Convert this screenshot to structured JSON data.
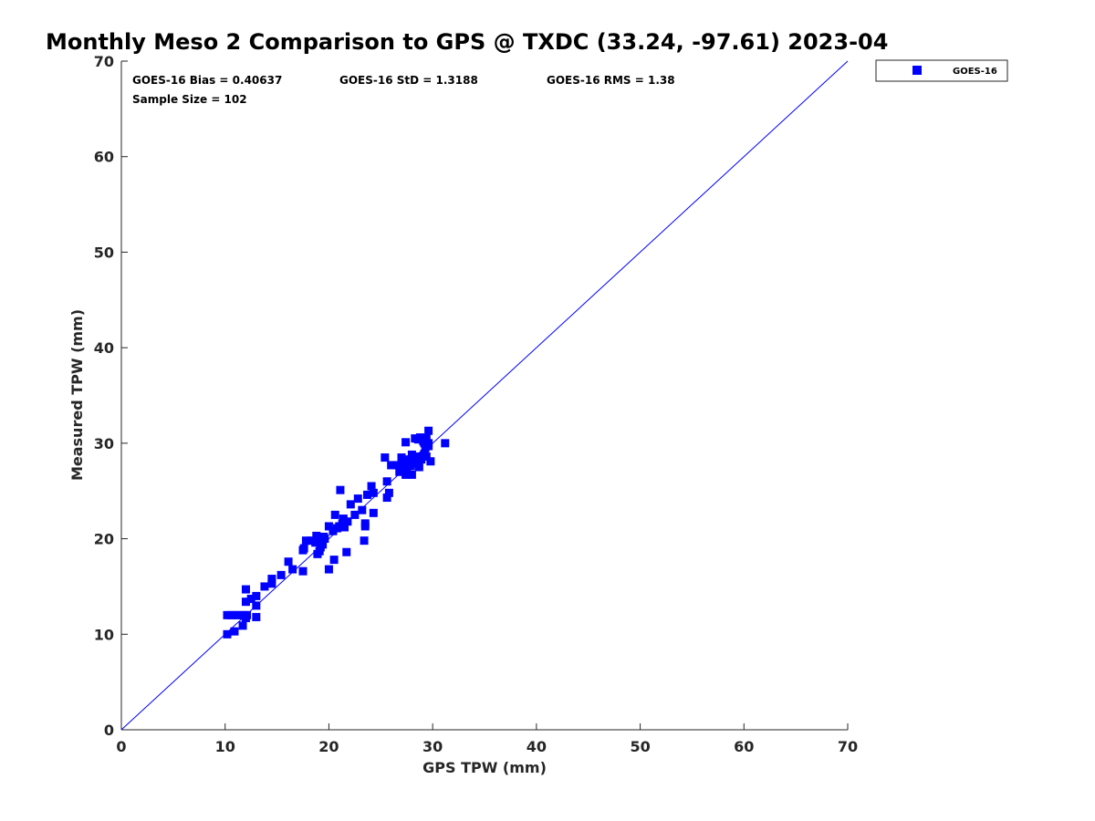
{
  "chart_data": {
    "type": "scatter",
    "title": "Monthly Meso 2 Comparison to GPS @ TXDC (33.24, -97.61) 2023-04",
    "xlabel": "GPS TPW (mm)",
    "ylabel": "Measured TPW (mm)",
    "xlim": [
      0,
      70
    ],
    "ylim": [
      0,
      70
    ],
    "xticks": [
      "0",
      "10",
      "20",
      "30",
      "40",
      "50",
      "60",
      "70"
    ],
    "yticks": [
      "0",
      "10",
      "20",
      "30",
      "40",
      "50",
      "60",
      "70"
    ],
    "grid": false,
    "legend_position": "outside-top-right",
    "reference_line": {
      "x": [
        0,
        70
      ],
      "y": [
        0,
        70
      ],
      "color": "#0000ff"
    },
    "stats": {
      "bias": "GOES-16 Bias = 0.40637",
      "std": "GOES-16 StD = 1.3188",
      "rms": "GOES-16 RMS = 1.38",
      "sample_size": "Sample Size = 102"
    },
    "series": [
      {
        "name": "GOES-16",
        "color": "#0000ff",
        "marker": "square",
        "points": [
          [
            10.2,
            10.0
          ],
          [
            10.9,
            10.3
          ],
          [
            11.7,
            10.9
          ],
          [
            12.0,
            11.7
          ],
          [
            13.0,
            11.8
          ],
          [
            10.2,
            12.0
          ],
          [
            10.6,
            12.0
          ],
          [
            11.0,
            12.0
          ],
          [
            11.4,
            12.0
          ],
          [
            11.8,
            12.0
          ],
          [
            12.1,
            12.0
          ],
          [
            13.0,
            13.0
          ],
          [
            12.0,
            13.4
          ],
          [
            12.5,
            13.7
          ],
          [
            13.0,
            14.0
          ],
          [
            12.0,
            14.7
          ],
          [
            13.8,
            15.0
          ],
          [
            14.5,
            15.3
          ],
          [
            14.5,
            15.8
          ],
          [
            15.4,
            16.2
          ],
          [
            16.1,
            17.6
          ],
          [
            17.5,
            16.6
          ],
          [
            17.5,
            18.8
          ],
          [
            17.6,
            19.0
          ],
          [
            17.8,
            19.8
          ],
          [
            18.3,
            19.8
          ],
          [
            18.8,
            20.3
          ],
          [
            18.9,
            18.4
          ],
          [
            19.1,
            18.7
          ],
          [
            19.2,
            19.1
          ],
          [
            19.4,
            19.4
          ],
          [
            18.7,
            19.6
          ],
          [
            19.0,
            19.9
          ],
          [
            19.5,
            20.2
          ],
          [
            20.0,
            16.8
          ],
          [
            20.5,
            17.8
          ],
          [
            21.7,
            18.6
          ],
          [
            20.0,
            21.3
          ],
          [
            20.4,
            20.8
          ],
          [
            20.8,
            21.1
          ],
          [
            20.6,
            22.5
          ],
          [
            21.0,
            21.3
          ],
          [
            21.3,
            21.6
          ],
          [
            21.5,
            21.2
          ],
          [
            21.4,
            22.1
          ],
          [
            21.8,
            21.8
          ],
          [
            21.1,
            25.1
          ],
          [
            22.1,
            23.6
          ],
          [
            22.8,
            24.2
          ],
          [
            23.4,
            19.8
          ],
          [
            23.2,
            23.0
          ],
          [
            23.5,
            21.3
          ],
          [
            23.5,
            21.6
          ],
          [
            24.3,
            22.7
          ],
          [
            23.7,
            24.6
          ],
          [
            24.1,
            25.5
          ],
          [
            24.3,
            24.8
          ],
          [
            25.6,
            24.3
          ],
          [
            25.8,
            24.8
          ],
          [
            25.4,
            28.5
          ],
          [
            25.6,
            26.0
          ],
          [
            26.0,
            27.7
          ],
          [
            26.5,
            27.7
          ],
          [
            26.8,
            27.0
          ],
          [
            27.0,
            28.5
          ],
          [
            27.1,
            27.8
          ],
          [
            27.3,
            28.2
          ],
          [
            27.4,
            26.7
          ],
          [
            27.5,
            27.5
          ],
          [
            27.6,
            27.8
          ],
          [
            27.8,
            28.3
          ],
          [
            27.9,
            27.6
          ],
          [
            28.0,
            26.7
          ],
          [
            28.2,
            28.3
          ],
          [
            28.3,
            27.9
          ],
          [
            27.4,
            30.1
          ],
          [
            28.0,
            28.8
          ],
          [
            28.5,
            28.5
          ],
          [
            28.6,
            30.4
          ],
          [
            28.7,
            27.5
          ],
          [
            28.9,
            28.3
          ],
          [
            29.1,
            28.7
          ],
          [
            29.2,
            28.9
          ],
          [
            29.3,
            29.5
          ],
          [
            29.4,
            28.6
          ],
          [
            28.3,
            30.5
          ],
          [
            28.8,
            30.6
          ],
          [
            29.0,
            30.4
          ],
          [
            29.1,
            30.2
          ],
          [
            29.4,
            30.5
          ],
          [
            29.2,
            30.0
          ],
          [
            29.6,
            30.0
          ],
          [
            29.6,
            29.7
          ],
          [
            29.6,
            31.3
          ],
          [
            29.8,
            28.1
          ],
          [
            31.2,
            30.0
          ],
          [
            26.9,
            27.4
          ],
          [
            27.2,
            28.0
          ],
          [
            28.4,
            28.6
          ],
          [
            22.5,
            22.5
          ],
          [
            19.6,
            20.0
          ],
          [
            16.5,
            16.8
          ]
        ]
      }
    ]
  }
}
